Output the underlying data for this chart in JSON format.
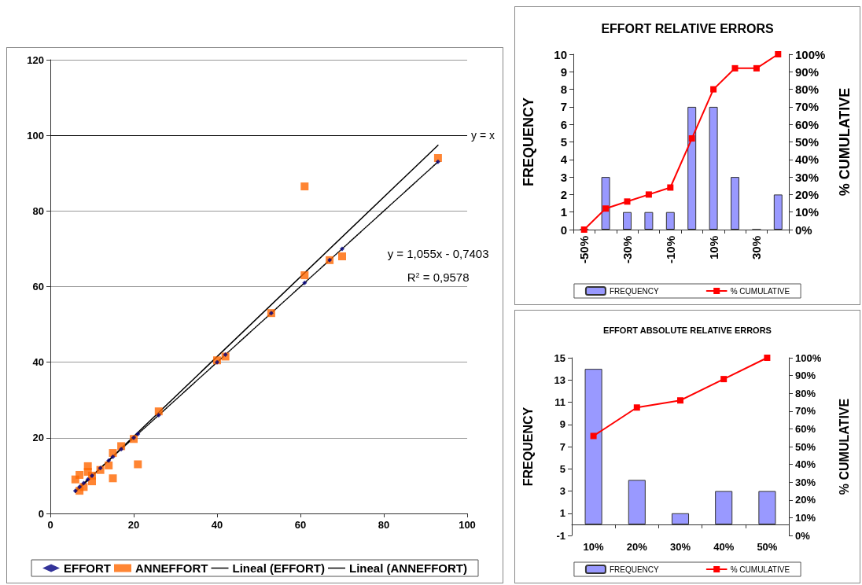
{
  "chart_data": [
    {
      "type": "scatter",
      "xlim": [
        0,
        100
      ],
      "ylim": [
        0,
        120
      ],
      "xticks": [
        0,
        20,
        40,
        60,
        80,
        100
      ],
      "yticks": [
        0,
        20,
        40,
        60,
        80,
        100,
        120
      ],
      "grid": "y",
      "legend": "bottom",
      "ref_lines": [
        {
          "axis": "y",
          "value": 100,
          "label": "y = x",
          "color": "#000000"
        }
      ],
      "annotations": [
        "y = 1,055x - 0,7403",
        "R$^{2}$ = 0,9578"
      ],
      "series": [
        {
          "name": "EFFORT",
          "color": "#000080",
          "marker": "diamond",
          "x": [
            6,
            7,
            8,
            9,
            10,
            12,
            14,
            15,
            17,
            20,
            21,
            26,
            40,
            42,
            53,
            61,
            67,
            70,
            93
          ],
          "values": [
            6,
            7,
            8,
            9,
            10,
            12,
            14,
            15,
            17,
            20,
            21,
            26,
            40,
            42,
            53,
            61,
            67,
            70,
            93
          ]
        },
        {
          "name": "ANNEFFORT",
          "color": "#ff6600",
          "marker": "square",
          "x": [
            6,
            7,
            7,
            8,
            9,
            9,
            10,
            10,
            12,
            14,
            15,
            15,
            17,
            20,
            21,
            26,
            40,
            42,
            53,
            61,
            61,
            67,
            70,
            93
          ],
          "values": [
            9,
            10.2,
            6,
            7,
            12.5,
            11,
            8.5,
            10,
            11.5,
            12.7,
            16,
            9.3,
            17.8,
            19.7,
            13,
            27,
            40.5,
            41.5,
            53,
            63,
            86.5,
            67,
            68,
            94
          ]
        },
        {
          "name": "Lineal (EFFORT)",
          "type": "line",
          "color": "#000000",
          "marker": "none",
          "line_style": "dotted",
          "x": [
            6,
            93
          ],
          "values": [
            6,
            93
          ]
        },
        {
          "name": "Lineal (ANNEFFORT)",
          "type": "line",
          "color": "#000000",
          "marker": "none",
          "line_style": "solid",
          "x": [
            6,
            93
          ],
          "values": [
            5.6,
            97.4
          ]
        }
      ]
    },
    {
      "type": "bar",
      "title": "EFFORT RELATIVE ERRORS",
      "ylabel": "FREQUENCY",
      "y2label": "% CUMULATIVE",
      "legend": "bottom",
      "categories": [
        "-50%",
        null,
        "-30%",
        null,
        "-10%",
        null,
        "10%",
        null,
        "30%",
        null
      ],
      "ylim": [
        0,
        10
      ],
      "yticks": [
        0,
        1,
        2,
        3,
        4,
        5,
        6,
        7,
        8,
        9,
        10
      ],
      "y2lim": [
        0,
        100
      ],
      "y2ticks": [
        {
          "value": 0,
          "label": "0%"
        },
        {
          "value": 10,
          "label": "10%"
        },
        {
          "value": 20,
          "label": "20%"
        },
        {
          "value": 30,
          "label": "30%"
        },
        {
          "value": 40,
          "label": "40%"
        },
        {
          "value": 50,
          "label": "50%"
        },
        {
          "value": 60,
          "label": "60%"
        },
        {
          "value": 70,
          "label": "70%"
        },
        {
          "value": 80,
          "label": "80%"
        },
        {
          "value": 90,
          "label": "90%"
        },
        {
          "value": 100,
          "label": "100%"
        }
      ],
      "series": [
        {
          "name": "FREQUENCY",
          "color": "#9999ff",
          "values": [
            0,
            3,
            1,
            1,
            1,
            7,
            7,
            3,
            0,
            2
          ]
        },
        {
          "name": "% CUMULATIVE",
          "type": "line",
          "axis": "y2",
          "color": "#ff0000",
          "marker": "square",
          "line_style": "solid",
          "values": [
            0,
            12,
            16,
            20,
            24,
            52,
            80,
            92,
            92,
            100
          ]
        }
      ]
    },
    {
      "type": "bar",
      "title": "EFFORT ABSOLUTE RELATIVE ERRORS",
      "ylabel": "FREQUENCY",
      "y2label": "% CUMULATIVE",
      "legend": "bottom",
      "categories": [
        "10%",
        "20%",
        "30%",
        "40%",
        "50%"
      ],
      "ylim": [
        -1,
        15
      ],
      "yticks": [
        -1,
        1,
        3,
        5,
        7,
        9,
        11,
        13,
        15
      ],
      "y2lim": [
        0,
        100
      ],
      "y2ticks": [
        {
          "value": 0,
          "label": "0%"
        },
        {
          "value": 10,
          "label": "10%"
        },
        {
          "value": 20,
          "label": "20%"
        },
        {
          "value": 30,
          "label": "30%"
        },
        {
          "value": 40,
          "label": "40%"
        },
        {
          "value": 50,
          "label": "50%"
        },
        {
          "value": 60,
          "label": "60%"
        },
        {
          "value": 70,
          "label": "70%"
        },
        {
          "value": 80,
          "label": "80%"
        },
        {
          "value": 90,
          "label": "90%"
        },
        {
          "value": 100,
          "label": "100%"
        }
      ],
      "series": [
        {
          "name": "FREQUENCY",
          "color": "#9999ff",
          "values": [
            14,
            4,
            1,
            3,
            3
          ]
        },
        {
          "name": "% CUMULATIVE",
          "type": "line",
          "axis": "y2",
          "color": "#ff0000",
          "marker": "square",
          "line_style": "solid",
          "values": [
            56,
            72,
            76,
            88,
            100
          ]
        }
      ]
    }
  ]
}
